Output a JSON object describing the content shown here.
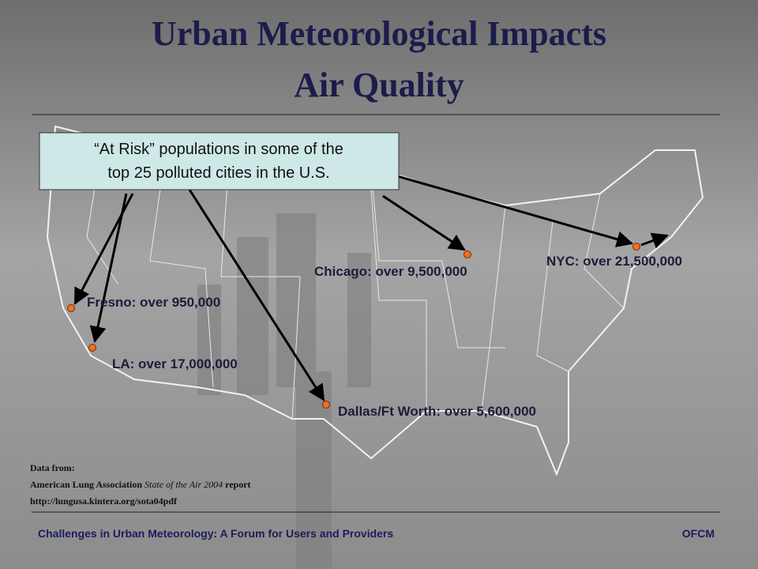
{
  "header": {
    "title_line1": "Urban Meteorological Impacts",
    "title_line2": "Air Quality"
  },
  "callout": {
    "line1": "“At Risk” populations in some of the",
    "line2": "top 25 polluted cities in the U.S."
  },
  "cities": [
    {
      "label": "Fresno: over 950,000"
    },
    {
      "label": "LA: over 17,000,000"
    },
    {
      "label": "Chicago: over 9,500,000"
    },
    {
      "label": "NYC: over 21,500,000"
    },
    {
      "label": "Dallas/Ft Worth: over 5,600,000"
    }
  ],
  "source": {
    "line1": "Data from:",
    "line2_start": "American Lung Association",
    "line2_italic": "State of the Air 2004",
    "line2_end": "report",
    "line3": "http://lungusa.kintera.org/sota04pdf"
  },
  "footer": {
    "left": "Challenges in Urban Meteorology:  A Forum for Users and Providers",
    "right": "OFCM"
  }
}
